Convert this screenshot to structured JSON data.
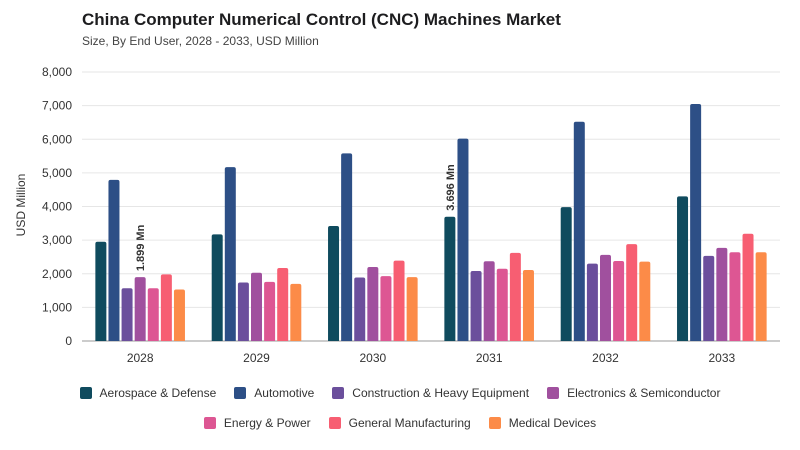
{
  "header": {
    "title": "China Computer Numerical Control (CNC) Machines Market",
    "subtitle": "Size, By End User, 2028 - 2033, USD Million"
  },
  "chart_data": {
    "type": "bar",
    "ylabel": "USD Million",
    "ylim": [
      0,
      8000
    ],
    "yticks": [
      0,
      1000,
      2000,
      3000,
      4000,
      5000,
      6000,
      7000,
      8000
    ],
    "ytick_labels": [
      "0",
      "1,000",
      "2,000",
      "3,000",
      "4,000",
      "5,000",
      "6,000",
      "7,000",
      "8,000"
    ],
    "categories": [
      "2028",
      "2029",
      "2030",
      "2031",
      "2032",
      "2033"
    ],
    "series": [
      {
        "name": "Aerospace & Defense",
        "color": "#0f4b5e",
        "values": [
          2950,
          3170,
          3420,
          3696,
          3980,
          4300
        ]
      },
      {
        "name": "Automotive",
        "color": "#2d4f86",
        "values": [
          4790,
          5170,
          5580,
          6020,
          6520,
          7050
        ]
      },
      {
        "name": "Construction & Heavy Equipment",
        "color": "#6b4f9c",
        "values": [
          1570,
          1740,
          1890,
          2080,
          2300,
          2530
        ]
      },
      {
        "name": "Electronics & Semiconductor",
        "color": "#a0509e",
        "values": [
          1899,
          2030,
          2200,
          2370,
          2560,
          2770
        ]
      },
      {
        "name": "Energy & Power",
        "color": "#dd5693",
        "values": [
          1570,
          1760,
          1930,
          2150,
          2380,
          2640
        ]
      },
      {
        "name": "General Manufacturing",
        "color": "#f75e72",
        "values": [
          1980,
          2170,
          2390,
          2620,
          2880,
          3190
        ]
      },
      {
        "name": "Medical Devices",
        "color": "#fc8b48",
        "values": [
          1530,
          1700,
          1900,
          2110,
          2360,
          2640
        ]
      }
    ],
    "annotations": [
      {
        "text": "1.899 Mn",
        "category": "2028",
        "series": "Electronics & Semiconductor"
      },
      {
        "text": "3.696 Mn",
        "category": "2031",
        "series": "Aerospace & Defense"
      }
    ],
    "grid": true,
    "legend_position": "bottom"
  }
}
